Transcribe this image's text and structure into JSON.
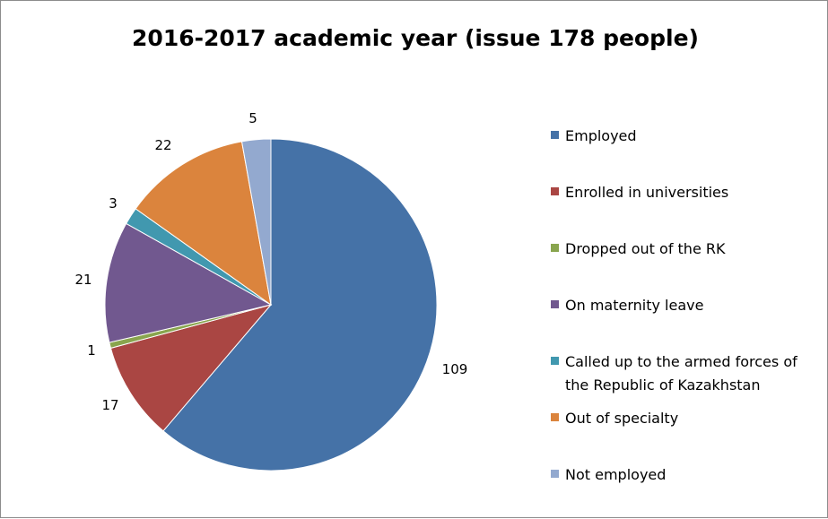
{
  "chart_data": {
    "type": "pie",
    "title": "2016-2017 academic year (issue 178 people)",
    "categories": [
      "Employed",
      "Enrolled in universities",
      "Dropped out of the RK",
      "On maternity leave",
      "Called up to the armed forces of the Republic of Kazakhstan",
      "Out of specialty",
      "Not employed"
    ],
    "legend_lines": [
      [
        "Employed"
      ],
      [
        "Enrolled in universities"
      ],
      [
        "Dropped out of the RK"
      ],
      [
        "On maternity leave"
      ],
      [
        "Called up to the armed forces of",
        "the Republic of Kazakhstan"
      ],
      [
        "Out of specialty"
      ],
      [
        "Not employed"
      ]
    ],
    "values": [
      109,
      17,
      1,
      21,
      3,
      22,
      5
    ],
    "data_labels": [
      "109",
      "17",
      "1",
      "21",
      "3",
      "22",
      "5"
    ],
    "colors": [
      "#4572A7",
      "#AA4643",
      "#89A54E",
      "#71588F",
      "#4198AF",
      "#DB843D",
      "#93A9CF"
    ],
    "start_angle": "12 o'clock",
    "direction": "clockwise",
    "legend_position": "right"
  }
}
